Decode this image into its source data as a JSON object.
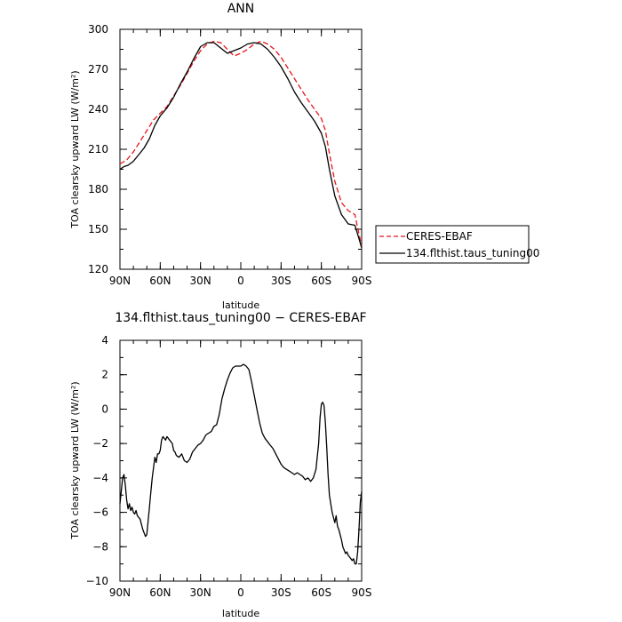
{
  "chart_data": [
    {
      "type": "line",
      "title": "ANN",
      "xlabel": "latitude",
      "ylabel": "TOA clearsky upward LW (W/m²)",
      "xlim": [
        90,
        -90
      ],
      "ylim": [
        120,
        300
      ],
      "xticks": [
        90,
        60,
        30,
        0,
        -30,
        -60,
        -90
      ],
      "xtick_labels": [
        "90N",
        "60N",
        "30N",
        "0",
        "30S",
        "60S",
        "90S"
      ],
      "yticks": [
        120,
        150,
        180,
        210,
        240,
        270,
        300
      ],
      "ytick_labels": [
        "120",
        "150",
        "180",
        "210",
        "240",
        "270",
        "300"
      ],
      "legend_position": "right",
      "series": [
        {
          "name": "CERES-EBAF",
          "color": "#e8141c",
          "dash": "dashed",
          "x": [
            90,
            85,
            80,
            75,
            70,
            65,
            60,
            55,
            50,
            45,
            40,
            35,
            30,
            25,
            20,
            15,
            10,
            5,
            0,
            -5,
            -10,
            -15,
            -20,
            -25,
            -30,
            -35,
            -40,
            -45,
            -50,
            -55,
            -60,
            -63,
            -66,
            -70,
            -75,
            -80,
            -85,
            -90
          ],
          "y": [
            199,
            202,
            208,
            216,
            224,
            232,
            237,
            242,
            250,
            258,
            267,
            276,
            284,
            289,
            291,
            290,
            285,
            280,
            282,
            285,
            289,
            291,
            289,
            285,
            279,
            271,
            263,
            255,
            247,
            240,
            233,
            224,
            207,
            186,
            170,
            164,
            161,
            137
          ]
        },
        {
          "name": "134.flthist.taus_tuning00",
          "color": "#000000",
          "dash": "solid",
          "x": [
            90,
            87,
            84,
            80,
            76,
            72,
            68,
            64,
            60,
            55,
            50,
            45,
            40,
            35,
            30,
            25,
            20,
            15,
            10,
            5,
            0,
            -5,
            -10,
            -15,
            -20,
            -25,
            -30,
            -35,
            -40,
            -45,
            -50,
            -55,
            -60,
            -63,
            -66,
            -70,
            -75,
            -80,
            -85,
            -88,
            -90
          ],
          "y": [
            195,
            197,
            198,
            201,
            206,
            211,
            218,
            228,
            235,
            241,
            249,
            259,
            268,
            278,
            287,
            290,
            290,
            286,
            282,
            284,
            286,
            289,
            290,
            289,
            285,
            279,
            272,
            263,
            253,
            245,
            238,
            231,
            222,
            212,
            195,
            175,
            161,
            154,
            153,
            143,
            136
          ]
        }
      ]
    },
    {
      "type": "line",
      "title": "134.flthist.taus_tuning00 − CERES-EBAF",
      "xlabel": "latitude",
      "ylabel": "TOA clearsky upward LW (W/m²)",
      "xlim": [
        90,
        -90
      ],
      "ylim": [
        -10,
        4
      ],
      "xticks": [
        90,
        60,
        30,
        0,
        -30,
        -60,
        -90
      ],
      "xtick_labels": [
        "90N",
        "60N",
        "30N",
        "0",
        "30S",
        "60S",
        "90S"
      ],
      "yticks": [
        -10,
        -8,
        -6,
        -4,
        -2,
        0,
        2,
        4
      ],
      "ytick_labels": [
        "−10",
        "−8",
        "−6",
        "−4",
        "−2",
        "0",
        "2",
        "4"
      ],
      "series": [
        {
          "color": "#000000",
          "dash": "solid",
          "x": [
            90,
            88,
            87,
            86,
            85,
            84,
            83,
            82,
            81,
            80,
            79,
            78,
            77,
            75,
            73,
            71,
            70,
            69,
            68,
            67,
            66,
            65,
            64,
            63,
            62,
            61,
            60,
            59,
            58,
            56,
            55,
            53,
            51,
            50,
            49,
            48,
            46,
            44,
            42,
            40,
            38,
            36,
            34,
            32,
            30,
            28,
            26,
            24,
            22,
            20,
            18,
            16,
            14,
            12,
            10,
            8,
            6,
            4,
            2,
            0,
            -2,
            -4,
            -6,
            -8,
            -10,
            -12,
            -14,
            -16,
            -18,
            -20,
            -22,
            -24,
            -26,
            -28,
            -30,
            -32,
            -34,
            -36,
            -38,
            -40,
            -42,
            -44,
            -46,
            -48,
            -50,
            -52,
            -54,
            -56,
            -58,
            -59,
            -60,
            -61,
            -62,
            -63,
            -64,
            -65,
            -66,
            -67,
            -68,
            -69,
            -70,
            -71,
            -72,
            -73,
            -74,
            -75,
            -76,
            -77,
            -78,
            -79,
            -80,
            -81,
            -82,
            -83,
            -84,
            -85,
            -86,
            -87,
            -88,
            -89,
            -90
          ],
          "y": [
            -5.5,
            -4.0,
            -3.8,
            -4.4,
            -5.3,
            -5.8,
            -5.5,
            -5.9,
            -5.7,
            -6.0,
            -6.1,
            -5.9,
            -6.2,
            -6.4,
            -7.0,
            -7.4,
            -7.3,
            -6.5,
            -5.7,
            -4.8,
            -4.0,
            -3.4,
            -2.8,
            -3.1,
            -2.6,
            -2.6,
            -2.4,
            -1.8,
            -1.6,
            -1.8,
            -1.6,
            -1.8,
            -2.0,
            -2.4,
            -2.5,
            -2.7,
            -2.8,
            -2.6,
            -3.0,
            -3.1,
            -2.9,
            -2.5,
            -2.3,
            -2.1,
            -2.0,
            -1.8,
            -1.5,
            -1.4,
            -1.3,
            -1.0,
            -0.9,
            -0.3,
            0.6,
            1.2,
            1.7,
            2.1,
            2.4,
            2.5,
            2.5,
            2.5,
            2.6,
            2.5,
            2.3,
            1.6,
            0.8,
            0.0,
            -0.8,
            -1.4,
            -1.7,
            -1.9,
            -2.1,
            -2.3,
            -2.6,
            -2.9,
            -3.2,
            -3.4,
            -3.5,
            -3.6,
            -3.7,
            -3.8,
            -3.7,
            -3.8,
            -3.9,
            -4.1,
            -4.0,
            -4.2,
            -4.0,
            -3.5,
            -2.0,
            -0.5,
            0.3,
            0.4,
            0.2,
            -0.8,
            -2.2,
            -3.8,
            -5.0,
            -5.5,
            -6.0,
            -6.3,
            -6.6,
            -6.2,
            -6.8,
            -7.0,
            -7.3,
            -7.6,
            -8.0,
            -8.2,
            -8.4,
            -8.3,
            -8.5,
            -8.6,
            -8.7,
            -8.8,
            -8.7,
            -9.0,
            -9.0,
            -8.3,
            -7.0,
            -5.4,
            -4.8
          ]
        }
      ]
    }
  ]
}
